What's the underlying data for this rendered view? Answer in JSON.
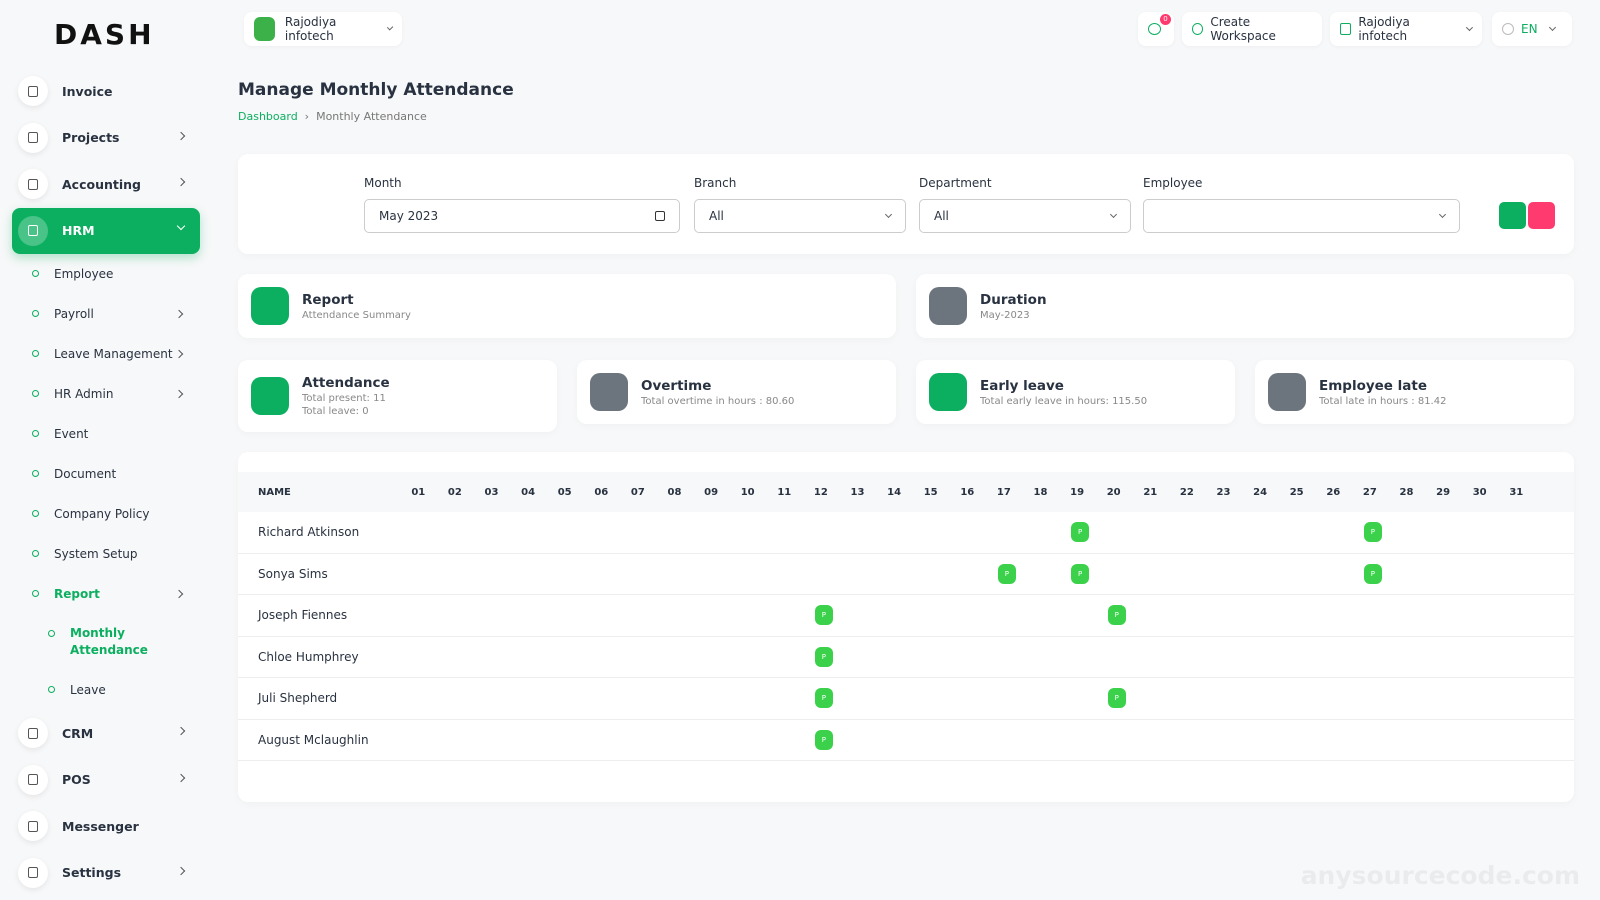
{
  "logo": "DASH",
  "header": {
    "workspace": "Rajodiya infotech",
    "notifications": "0",
    "create_workspace": "Create Workspace",
    "user": "Rajodiya infotech",
    "language": "EN"
  },
  "sidebar": {
    "items": [
      {
        "label": "Invoice"
      },
      {
        "label": "Projects",
        "has_children": true
      },
      {
        "label": "Accounting",
        "has_children": true
      },
      {
        "label": "HRM",
        "has_children": true,
        "active": true,
        "children": [
          {
            "label": "Employee"
          },
          {
            "label": "Payroll",
            "has_children": true
          },
          {
            "label": "Leave Management",
            "has_children": true
          },
          {
            "label": "HR Admin",
            "has_children": true
          },
          {
            "label": "Event"
          },
          {
            "label": "Document"
          },
          {
            "label": "Company Policy"
          },
          {
            "label": "System Setup"
          },
          {
            "label": "Report",
            "has_children": true,
            "active": true,
            "children": [
              {
                "label": "Monthly Attendance",
                "active": true
              },
              {
                "label": "Leave"
              }
            ]
          }
        ]
      },
      {
        "label": "CRM",
        "has_children": true
      },
      {
        "label": "POS",
        "has_children": true
      },
      {
        "label": "Messenger"
      },
      {
        "label": "Settings",
        "has_children": true
      }
    ]
  },
  "page": {
    "title": "Manage Monthly Attendance",
    "breadcrumb": [
      "Dashboard",
      "Monthly Attendance"
    ]
  },
  "filters": [
    {
      "label": "Month",
      "value": "May 2023"
    },
    {
      "label": "Branch",
      "value": "All"
    },
    {
      "label": "Department",
      "value": "All"
    },
    {
      "label": "Employee"
    }
  ],
  "summary_rows": [
    [
      {
        "title": "Report",
        "lines": [
          "Attendance Summary"
        ],
        "color": "#0caf60"
      },
      {
        "title": "Duration",
        "lines": [
          "May-2023"
        ],
        "color": "#6c757d"
      }
    ],
    [
      {
        "title": "Attendance",
        "lines": [
          "Total present: 11",
          "Total leave: 0"
        ],
        "color": "#0caf60"
      },
      {
        "title": "Overtime",
        "lines": [
          "Total overtime in hours : 80.60"
        ],
        "color": "#6c757d"
      },
      {
        "title": "Early leave",
        "lines": [
          "Total early leave in hours: 115.50"
        ],
        "color": "#0caf60"
      },
      {
        "title": "Employee late",
        "lines": [
          "Total late in hours : 81.42"
        ],
        "color": "#6c757d"
      }
    ]
  ],
  "table": {
    "columns": [
      "NAME",
      "01",
      "02",
      "03",
      "04",
      "05",
      "06",
      "07",
      "08",
      "09",
      "10",
      "11",
      "12",
      "13",
      "14",
      "15",
      "16",
      "17",
      "18",
      "19",
      "20",
      "21",
      "22",
      "23",
      "24",
      "25",
      "26",
      "27",
      "28",
      "29",
      "30",
      "31"
    ],
    "mark": "P",
    "rows": [
      {
        "name": "Richard Atkinson",
        "present": [
          "19",
          "27"
        ]
      },
      {
        "name": "Sonya Sims",
        "present": [
          "17",
          "19",
          "27"
        ]
      },
      {
        "name": "Joseph Fiennes",
        "present": [
          "12",
          "20"
        ]
      },
      {
        "name": "Chloe Humphrey",
        "present": [
          "12"
        ]
      },
      {
        "name": "Juli Shepherd",
        "present": [
          "12",
          "20"
        ]
      },
      {
        "name": "August Mclaughlin",
        "present": [
          "12"
        ]
      }
    ]
  },
  "watermark": "anysourcecode.com"
}
